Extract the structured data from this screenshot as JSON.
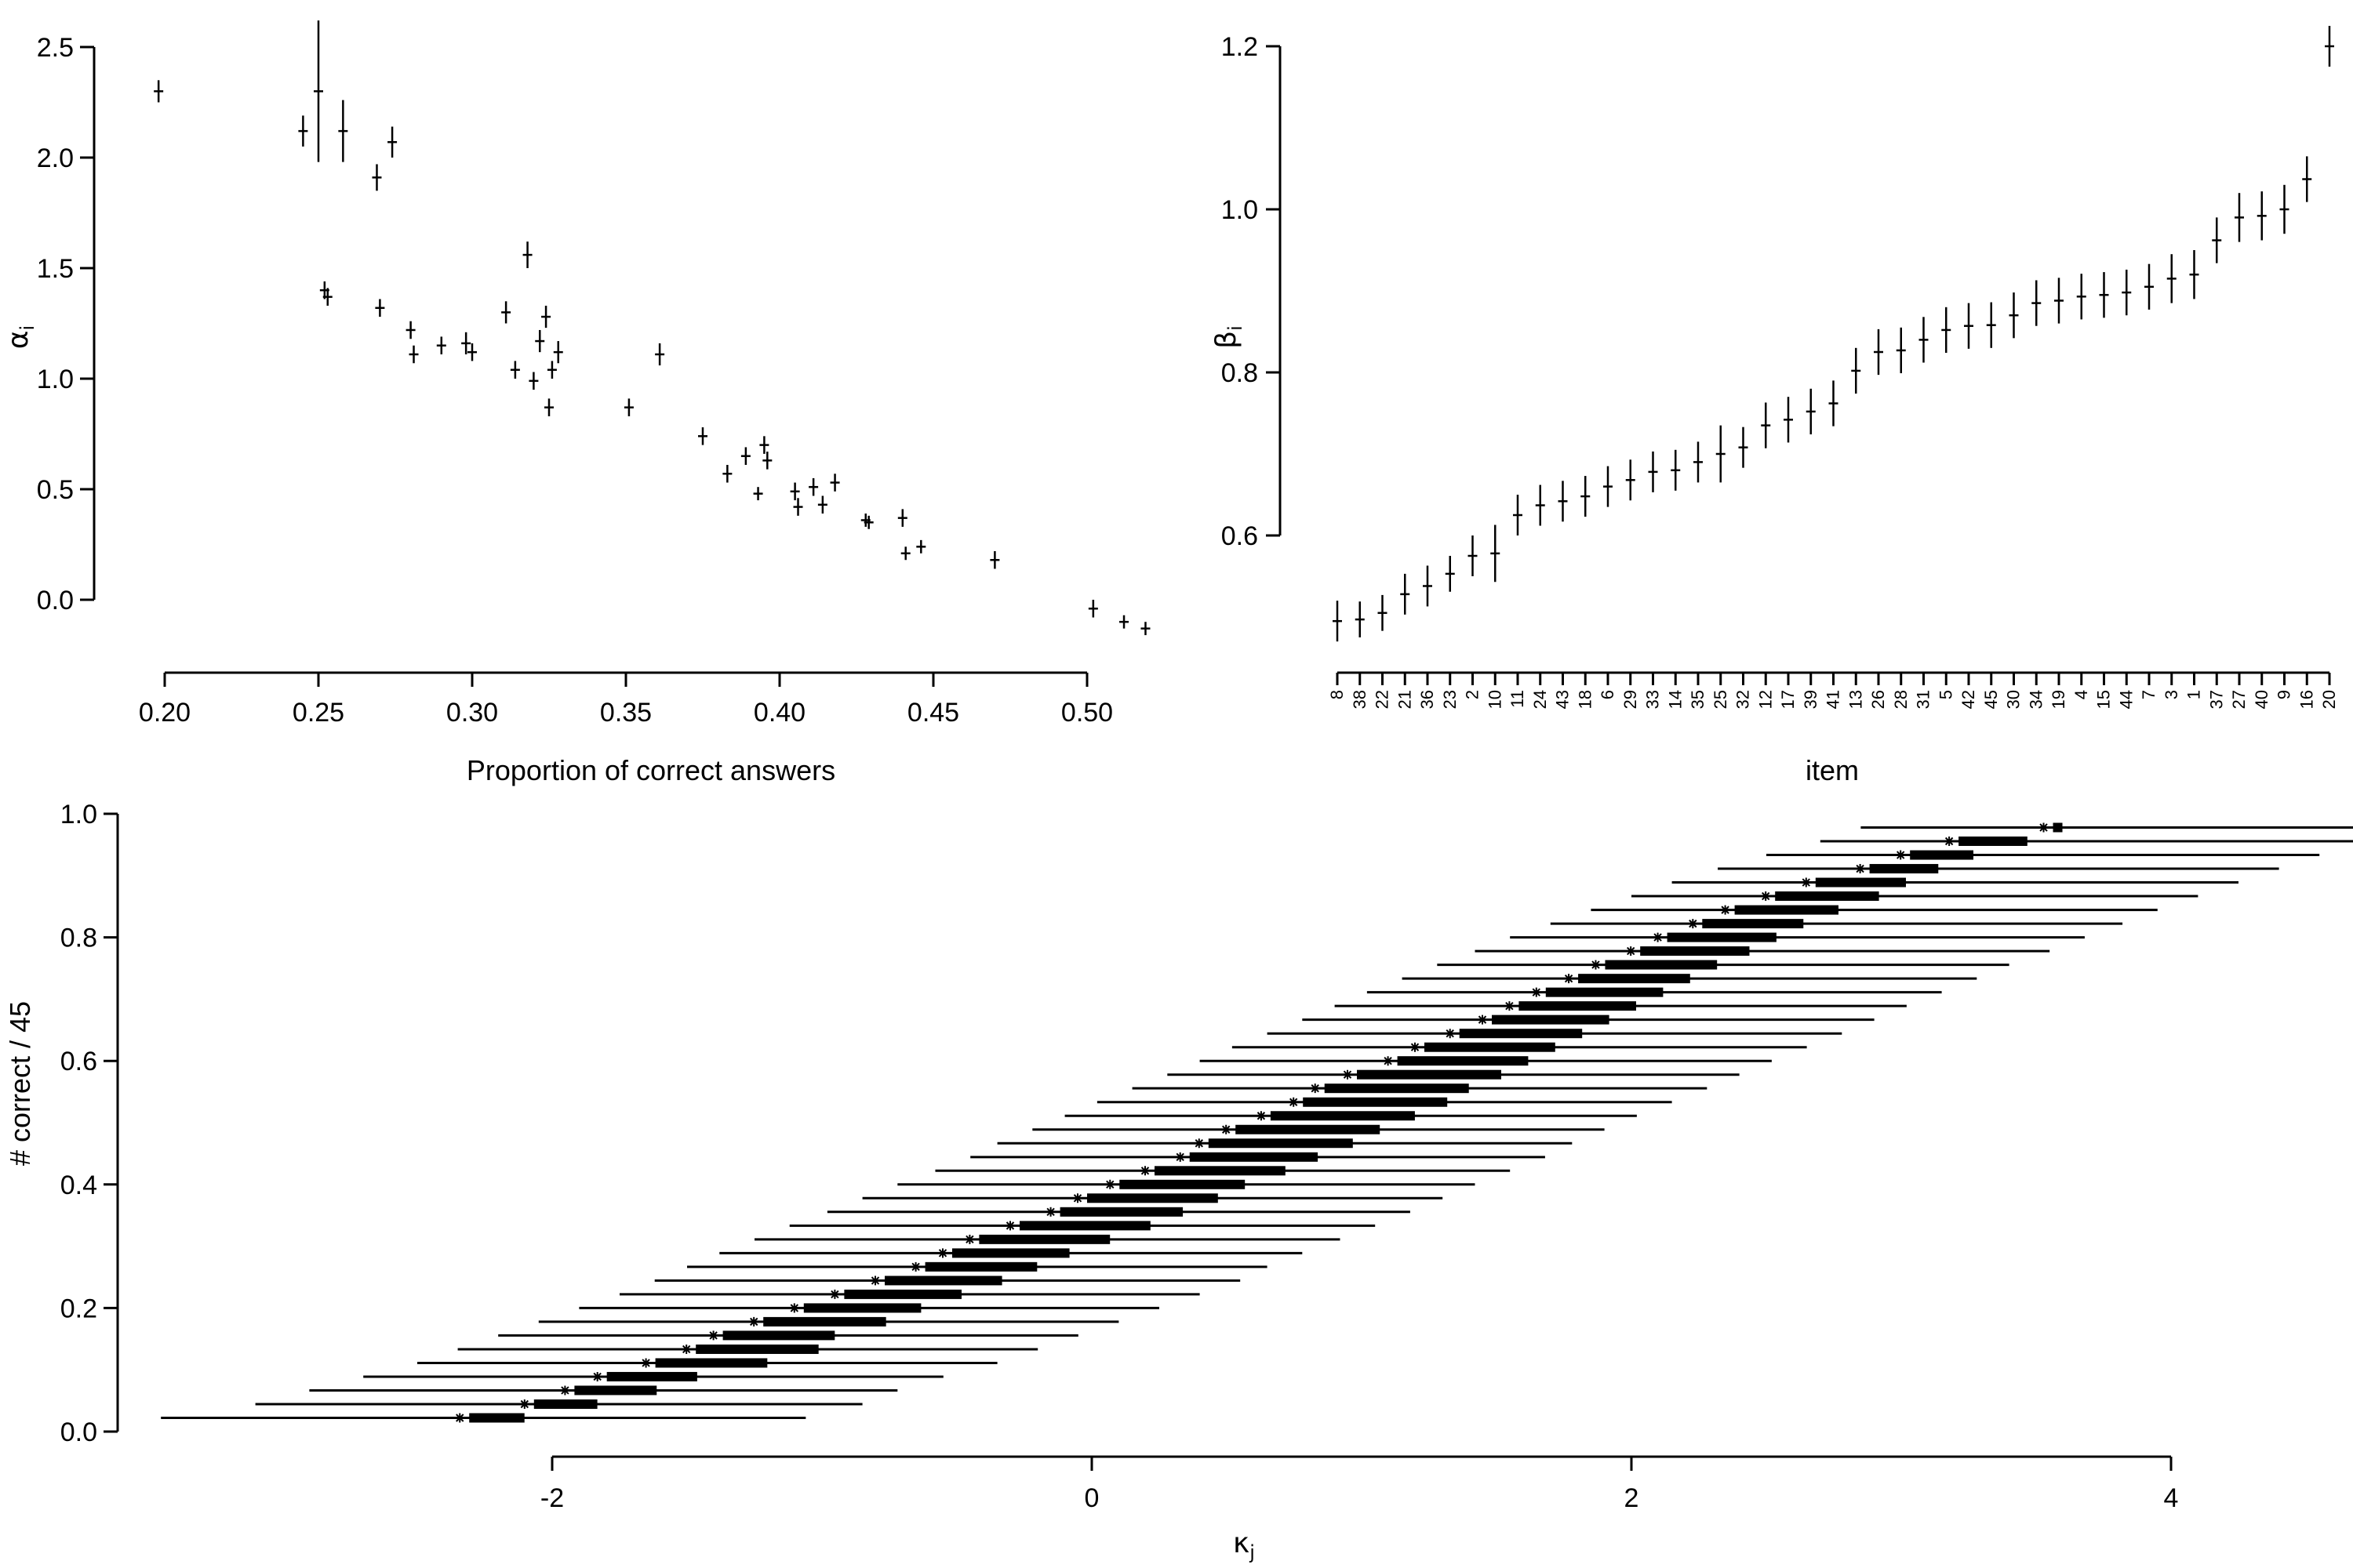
{
  "chart_data": [
    {
      "type": "scatter",
      "panel": "top-left",
      "xlabel": "Proportion of correct answers",
      "ylabel": {
        "symbol": "α",
        "sub": "i"
      },
      "xlim": [
        0.19,
        0.53
      ],
      "ylim": [
        -0.22,
        2.62
      ],
      "xticks": [
        "0.20",
        "0.25",
        "0.30",
        "0.35",
        "0.40",
        "0.45",
        "0.50"
      ],
      "yticks": [
        "0.0",
        "0.5",
        "1.0",
        "1.5",
        "2.0",
        "2.5"
      ],
      "points": [
        {
          "x": 0.198,
          "y": 2.3,
          "e": 0.05
        },
        {
          "x": 0.245,
          "y": 2.12,
          "e": 0.07
        },
        {
          "x": 0.25,
          "y": 2.3,
          "e": 0.32
        },
        {
          "x": 0.258,
          "y": 2.12,
          "e": 0.14
        },
        {
          "x": 0.252,
          "y": 1.4,
          "e": 0.04
        },
        {
          "x": 0.253,
          "y": 1.37,
          "e": 0.04
        },
        {
          "x": 0.269,
          "y": 1.91,
          "e": 0.06
        },
        {
          "x": 0.274,
          "y": 2.07,
          "e": 0.07
        },
        {
          "x": 0.27,
          "y": 1.32,
          "e": 0.04
        },
        {
          "x": 0.28,
          "y": 1.22,
          "e": 0.04
        },
        {
          "x": 0.281,
          "y": 1.11,
          "e": 0.04
        },
        {
          "x": 0.29,
          "y": 1.15,
          "e": 0.04
        },
        {
          "x": 0.298,
          "y": 1.16,
          "e": 0.05
        },
        {
          "x": 0.3,
          "y": 1.12,
          "e": 0.04
        },
        {
          "x": 0.311,
          "y": 1.3,
          "e": 0.05
        },
        {
          "x": 0.314,
          "y": 1.04,
          "e": 0.04
        },
        {
          "x": 0.318,
          "y": 1.56,
          "e": 0.06
        },
        {
          "x": 0.32,
          "y": 0.99,
          "e": 0.04
        },
        {
          "x": 0.322,
          "y": 1.17,
          "e": 0.05
        },
        {
          "x": 0.324,
          "y": 1.28,
          "e": 0.05
        },
        {
          "x": 0.325,
          "y": 0.87,
          "e": 0.04
        },
        {
          "x": 0.326,
          "y": 1.04,
          "e": 0.04
        },
        {
          "x": 0.328,
          "y": 1.12,
          "e": 0.05
        },
        {
          "x": 0.351,
          "y": 0.87,
          "e": 0.04
        },
        {
          "x": 0.361,
          "y": 1.11,
          "e": 0.05
        },
        {
          "x": 0.375,
          "y": 0.74,
          "e": 0.04
        },
        {
          "x": 0.383,
          "y": 0.57,
          "e": 0.04
        },
        {
          "x": 0.389,
          "y": 0.65,
          "e": 0.04
        },
        {
          "x": 0.393,
          "y": 0.48,
          "e": 0.03
        },
        {
          "x": 0.395,
          "y": 0.7,
          "e": 0.04
        },
        {
          "x": 0.396,
          "y": 0.63,
          "e": 0.04
        },
        {
          "x": 0.405,
          "y": 0.49,
          "e": 0.04
        },
        {
          "x": 0.406,
          "y": 0.42,
          "e": 0.04
        },
        {
          "x": 0.411,
          "y": 0.51,
          "e": 0.04
        },
        {
          "x": 0.414,
          "y": 0.43,
          "e": 0.04
        },
        {
          "x": 0.418,
          "y": 0.53,
          "e": 0.04
        },
        {
          "x": 0.428,
          "y": 0.36,
          "e": 0.03
        },
        {
          "x": 0.429,
          "y": 0.35,
          "e": 0.03
        },
        {
          "x": 0.44,
          "y": 0.37,
          "e": 0.04
        },
        {
          "x": 0.441,
          "y": 0.21,
          "e": 0.03
        },
        {
          "x": 0.446,
          "y": 0.24,
          "e": 0.03
        },
        {
          "x": 0.47,
          "y": 0.18,
          "e": 0.04
        },
        {
          "x": 0.502,
          "y": -0.04,
          "e": 0.04
        },
        {
          "x": 0.512,
          "y": -0.1,
          "e": 0.03
        },
        {
          "x": 0.519,
          "y": -0.13,
          "e": 0.03
        }
      ]
    },
    {
      "type": "scatter",
      "panel": "top-right",
      "xlabel": "item",
      "ylabel": {
        "symbol": "β",
        "sub": "i"
      },
      "ylim": [
        0.47,
        1.23
      ],
      "yticks": [
        "0.6",
        "0.8",
        "1.0",
        "1.2"
      ],
      "categories": [
        "8",
        "38",
        "22",
        "21",
        "36",
        "23",
        "2",
        "10",
        "11",
        "24",
        "43",
        "18",
        "6",
        "29",
        "33",
        "14",
        "35",
        "25",
        "32",
        "12",
        "17",
        "39",
        "41",
        "13",
        "26",
        "28",
        "31",
        "5",
        "42",
        "45",
        "30",
        "34",
        "19",
        "4",
        "15",
        "44",
        "7",
        "3",
        "1",
        "37",
        "27",
        "40",
        "9",
        "16",
        "20"
      ],
      "values": [
        0.495,
        0.497,
        0.505,
        0.528,
        0.538,
        0.553,
        0.575,
        0.578,
        0.625,
        0.637,
        0.642,
        0.648,
        0.66,
        0.668,
        0.678,
        0.68,
        0.69,
        0.7,
        0.708,
        0.735,
        0.742,
        0.752,
        0.762,
        0.802,
        0.825,
        0.827,
        0.84,
        0.852,
        0.857,
        0.858,
        0.87,
        0.885,
        0.888,
        0.893,
        0.895,
        0.898,
        0.905,
        0.915,
        0.92,
        0.962,
        0.99,
        0.992,
        1.0,
        1.037,
        1.2
      ],
      "errors": [
        0.025,
        0.022,
        0.022,
        0.025,
        0.025,
        0.022,
        0.025,
        0.035,
        0.025,
        0.025,
        0.025,
        0.025,
        0.025,
        0.025,
        0.025,
        0.025,
        0.025,
        0.035,
        0.025,
        0.028,
        0.028,
        0.028,
        0.028,
        0.028,
        0.028,
        0.028,
        0.028,
        0.028,
        0.028,
        0.028,
        0.028,
        0.028,
        0.028,
        0.028,
        0.028,
        0.028,
        0.028,
        0.03,
        0.03,
        0.028,
        0.03,
        0.03,
        0.03,
        0.028,
        0.025
      ]
    },
    {
      "type": "scatter",
      "panel": "bottom",
      "xlabel": {
        "symbol": "κ",
        "sub": "j"
      },
      "ylabel": "# correct / 45",
      "xlim": [
        -3.4,
        4.5
      ],
      "ylim": [
        -0.005,
        1.0
      ],
      "xticks": [
        "-2",
        "0",
        "2",
        "4"
      ],
      "yticks": [
        "0.0",
        "0.2",
        "0.4",
        "0.6",
        "0.8",
        "1.0"
      ],
      "rows": [
        {
          "y": 0.0222,
          "lo": -3.45,
          "hi": -1.06,
          "c0": -2.29,
          "c1": -2.12
        },
        {
          "y": 0.0444,
          "lo": -3.1,
          "hi": -0.85,
          "c0": -2.05,
          "c1": -1.85
        },
        {
          "y": 0.0667,
          "lo": -2.9,
          "hi": -0.72,
          "c0": -1.9,
          "c1": -1.63
        },
        {
          "y": 0.0889,
          "lo": -2.7,
          "hi": -0.55,
          "c0": -1.78,
          "c1": -1.48
        },
        {
          "y": 0.1111,
          "lo": -2.5,
          "hi": -0.35,
          "c0": -1.6,
          "c1": -1.22
        },
        {
          "y": 0.1333,
          "lo": -2.35,
          "hi": -0.2,
          "c0": -1.45,
          "c1": -1.03
        },
        {
          "y": 0.1556,
          "lo": -2.2,
          "hi": -0.05,
          "c0": -1.35,
          "c1": -0.97
        },
        {
          "y": 0.1778,
          "lo": -2.05,
          "hi": 0.1,
          "c0": -1.2,
          "c1": -0.78
        },
        {
          "y": 0.2,
          "lo": -1.9,
          "hi": 0.25,
          "c0": -1.05,
          "c1": -0.65
        },
        {
          "y": 0.2222,
          "lo": -1.75,
          "hi": 0.4,
          "c0": -0.9,
          "c1": -0.5
        },
        {
          "y": 0.2444,
          "lo": -1.62,
          "hi": 0.55,
          "c0": -0.75,
          "c1": -0.35
        },
        {
          "y": 0.2667,
          "lo": -1.5,
          "hi": 0.65,
          "c0": -0.6,
          "c1": -0.22
        },
        {
          "y": 0.2889,
          "lo": -1.38,
          "hi": 0.78,
          "c0": -0.5,
          "c1": -0.1
        },
        {
          "y": 0.3111,
          "lo": -1.25,
          "hi": 0.92,
          "c0": -0.4,
          "c1": 0.05
        },
        {
          "y": 0.3333,
          "lo": -1.12,
          "hi": 1.05,
          "c0": -0.25,
          "c1": 0.2
        },
        {
          "y": 0.3556,
          "lo": -0.98,
          "hi": 1.18,
          "c0": -0.1,
          "c1": 0.32
        },
        {
          "y": 0.3778,
          "lo": -0.85,
          "hi": 1.3,
          "c0": 0.0,
          "c1": 0.45
        },
        {
          "y": 0.4,
          "lo": -0.72,
          "hi": 1.42,
          "c0": 0.12,
          "c1": 0.55
        },
        {
          "y": 0.4222,
          "lo": -0.58,
          "hi": 1.55,
          "c0": 0.25,
          "c1": 0.7
        },
        {
          "y": 0.4444,
          "lo": -0.45,
          "hi": 1.68,
          "c0": 0.38,
          "c1": 0.82
        },
        {
          "y": 0.4667,
          "lo": -0.35,
          "hi": 1.78,
          "c0": 0.45,
          "c1": 0.95
        },
        {
          "y": 0.4889,
          "lo": -0.22,
          "hi": 1.9,
          "c0": 0.55,
          "c1": 1.05
        },
        {
          "y": 0.5111,
          "lo": -0.1,
          "hi": 2.02,
          "c0": 0.68,
          "c1": 1.18
        },
        {
          "y": 0.5333,
          "lo": 0.02,
          "hi": 2.15,
          "c0": 0.8,
          "c1": 1.3
        },
        {
          "y": 0.5556,
          "lo": 0.15,
          "hi": 2.28,
          "c0": 0.88,
          "c1": 1.38
        },
        {
          "y": 0.5778,
          "lo": 0.28,
          "hi": 2.4,
          "c0": 1.0,
          "c1": 1.5
        },
        {
          "y": 0.6,
          "lo": 0.4,
          "hi": 2.52,
          "c0": 1.15,
          "c1": 1.6
        },
        {
          "y": 0.6222,
          "lo": 0.52,
          "hi": 2.65,
          "c0": 1.25,
          "c1": 1.7
        },
        {
          "y": 0.6444,
          "lo": 0.65,
          "hi": 2.78,
          "c0": 1.38,
          "c1": 1.8
        },
        {
          "y": 0.6667,
          "lo": 0.78,
          "hi": 2.9,
          "c0": 1.5,
          "c1": 1.9
        },
        {
          "y": 0.6889,
          "lo": 0.9,
          "hi": 3.02,
          "c0": 1.6,
          "c1": 2.0
        },
        {
          "y": 0.7111,
          "lo": 1.02,
          "hi": 3.15,
          "c0": 1.7,
          "c1": 2.1
        },
        {
          "y": 0.7333,
          "lo": 1.15,
          "hi": 3.28,
          "c0": 1.82,
          "c1": 2.2
        },
        {
          "y": 0.7556,
          "lo": 1.28,
          "hi": 3.4,
          "c0": 1.92,
          "c1": 2.3
        },
        {
          "y": 0.7778,
          "lo": 1.42,
          "hi": 3.55,
          "c0": 2.05,
          "c1": 2.42
        },
        {
          "y": 0.8,
          "lo": 1.55,
          "hi": 3.68,
          "c0": 2.15,
          "c1": 2.52
        },
        {
          "y": 0.8222,
          "lo": 1.7,
          "hi": 3.82,
          "c0": 2.28,
          "c1": 2.62
        },
        {
          "y": 0.8444,
          "lo": 1.85,
          "hi": 3.95,
          "c0": 2.4,
          "c1": 2.75
        },
        {
          "y": 0.8667,
          "lo": 2.0,
          "hi": 4.1,
          "c0": 2.55,
          "c1": 2.9
        },
        {
          "y": 0.8889,
          "lo": 2.15,
          "hi": 4.25,
          "c0": 2.7,
          "c1": 3.0
        },
        {
          "y": 0.9111,
          "lo": 2.32,
          "hi": 4.4,
          "c0": 2.9,
          "c1": 3.12
        },
        {
          "y": 0.9333,
          "lo": 2.5,
          "hi": 4.55,
          "c0": 3.05,
          "c1": 3.25
        },
        {
          "y": 0.9556,
          "lo": 2.7,
          "hi": 4.7,
          "c0": 3.23,
          "c1": 3.45
        },
        {
          "y": 0.9778,
          "lo": 2.85,
          "hi": 4.9,
          "c0": 3.58,
          "c1": 3.58
        }
      ]
    }
  ]
}
